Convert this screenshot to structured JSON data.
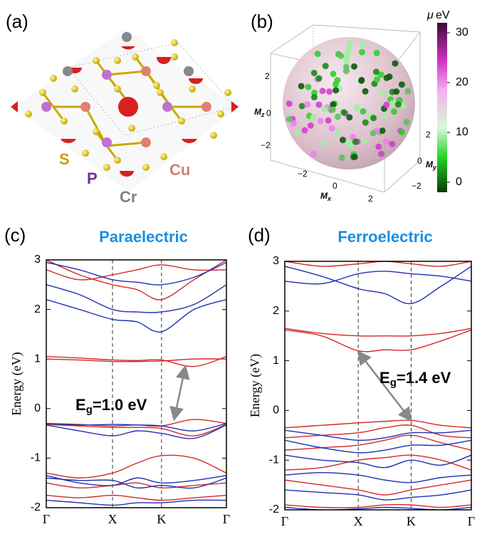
{
  "panel_labels": [
    "(a)",
    "(b)",
    "(c)",
    "(d)"
  ],
  "panel_a": {
    "elements": [
      "S",
      "P",
      "Cu",
      "Cr"
    ]
  },
  "panel_b": {
    "z_ticks": [
      "2",
      "0",
      "−2"
    ],
    "x_ticks": [
      "−2",
      "0",
      "2"
    ],
    "y_ticks": [
      "2",
      "0",
      "−2"
    ],
    "axis_labels": [
      {
        "main": "M",
        "sub": "z"
      },
      {
        "main": "M",
        "sub": "x"
      },
      {
        "main": "M",
        "sub": "y"
      }
    ],
    "colorbar": {
      "symbol": "μ",
      "unit": "eV",
      "lim": [
        -2,
        32
      ],
      "ticks": [
        0,
        10,
        20,
        30
      ]
    }
  },
  "chart_data": [
    {
      "type": "line",
      "title": "Paraelectric",
      "ylabel": "Energy (eV)",
      "xlim": [
        0,
        2.72
      ],
      "ylim": [
        -2,
        3
      ],
      "xticks": [
        {
          "value": 0,
          "label": "Γ"
        },
        {
          "value": 1,
          "label": "X"
        },
        {
          "value": 1.74,
          "label": "K"
        },
        {
          "value": 2.72,
          "label": "Γ"
        }
      ],
      "yticks": [
        -2,
        -1,
        0,
        1,
        2,
        3
      ],
      "kpoint_lines": true,
      "x": [
        0,
        0.5,
        1,
        1.37,
        1.74,
        2.23,
        2.72
      ],
      "series": [
        {
          "color": "#d62728",
          "values": [
            1.05,
            1.02,
            0.98,
            0.97,
            0.98,
            0.85,
            1.05
          ]
        },
        {
          "color": "#d62728",
          "values": [
            1.0,
            0.98,
            0.95,
            0.95,
            0.96,
            1.0,
            1.0
          ]
        },
        {
          "color": "#d62728",
          "values": [
            -0.3,
            -0.32,
            -0.35,
            -0.33,
            -0.35,
            -0.22,
            -0.3
          ]
        },
        {
          "color": "#d62728",
          "values": [
            -0.32,
            -0.35,
            -0.38,
            -0.38,
            -0.4,
            -0.55,
            -0.32
          ]
        },
        {
          "color": "#d62728",
          "values": [
            3,
            2.7,
            2.5,
            2.4,
            2.2,
            2.6,
            3
          ]
        },
        {
          "color": "#d62728",
          "values": [
            2.8,
            2.6,
            2.7,
            2.8,
            2.9,
            2.8,
            2.8
          ]
        },
        {
          "color": "#d62728",
          "values": [
            -1.3,
            -1.4,
            -1.3,
            -1.1,
            -0.95,
            -1.0,
            -1.3
          ]
        },
        {
          "color": "#d62728",
          "values": [
            -1.5,
            -1.6,
            -1.55,
            -1.5,
            -1.6,
            -1.55,
            -1.5
          ]
        },
        {
          "color": "#d62728",
          "values": [
            -1.75,
            -1.8,
            -1.75,
            -1.8,
            -1.85,
            -1.8,
            -1.75
          ]
        },
        {
          "color": "#1f2fb4",
          "values": [
            2.2,
            2.0,
            1.8,
            1.75,
            1.55,
            2.0,
            2.2
          ]
        },
        {
          "color": "#1f2fb4",
          "values": [
            2.5,
            2.3,
            2.0,
            1.95,
            1.95,
            2.1,
            2.5
          ]
        },
        {
          "color": "#1f2fb4",
          "values": [
            2.95,
            2.8,
            2.6,
            2.55,
            2.5,
            2.65,
            2.95
          ]
        },
        {
          "color": "#1f2fb4",
          "values": [
            -0.3,
            -0.33,
            -0.32,
            -0.33,
            -0.35,
            -0.45,
            -0.3
          ]
        },
        {
          "color": "#1f2fb4",
          "values": [
            -0.33,
            -0.45,
            -0.55,
            -0.45,
            -0.5,
            -0.6,
            -0.33
          ]
        },
        {
          "color": "#1f2fb4",
          "values": [
            -1.35,
            -1.5,
            -1.55,
            -1.4,
            -1.5,
            -1.45,
            -1.35
          ]
        },
        {
          "color": "#1f2fb4",
          "values": [
            -1.4,
            -1.45,
            -1.45,
            -1.6,
            -1.55,
            -1.6,
            -1.4
          ]
        },
        {
          "color": "#1f2fb4",
          "values": [
            -1.85,
            -1.9,
            -1.95,
            -1.9,
            -1.9,
            -1.85,
            -1.85
          ]
        }
      ],
      "annotation": {
        "main": "E",
        "sub": "g",
        "rest": "=1.0 eV",
        "arrow_from": [
          1.93,
          -0.22
        ],
        "arrow_to": [
          2.1,
          0.85
        ]
      }
    },
    {
      "type": "line",
      "title": "Ferroelectric",
      "ylabel": "Energy (eV)",
      "xlim": [
        0,
        2.54
      ],
      "ylim": [
        -2,
        3
      ],
      "xticks": [
        {
          "value": 0,
          "label": "Γ"
        },
        {
          "value": 1,
          "label": "X"
        },
        {
          "value": 1.72,
          "label": "K"
        },
        {
          "value": 2.54,
          "label": "Γ"
        }
      ],
      "yticks": [
        -2,
        -1,
        0,
        1,
        2,
        3
      ],
      "kpoint_lines": true,
      "x": [
        0,
        0.5,
        1,
        1.36,
        1.72,
        2.13,
        2.54
      ],
      "series": [
        {
          "color": "#d62728",
          "values": [
            1.62,
            1.5,
            1.2,
            1.22,
            1.22,
            1.4,
            1.62
          ]
        },
        {
          "color": "#d62728",
          "values": [
            1.65,
            1.55,
            1.5,
            1.5,
            1.5,
            1.55,
            1.65
          ]
        },
        {
          "color": "#d62728",
          "values": [
            3,
            2.9,
            2.95,
            3,
            2.95,
            2.9,
            3
          ]
        },
        {
          "color": "#d62728",
          "values": [
            -0.35,
            -0.3,
            -0.25,
            -0.22,
            -0.2,
            -0.3,
            -0.35
          ]
        },
        {
          "color": "#d62728",
          "values": [
            -0.55,
            -0.5,
            -0.45,
            -0.35,
            -0.3,
            -0.5,
            -0.55
          ]
        },
        {
          "color": "#d62728",
          "values": [
            -0.8,
            -0.75,
            -0.7,
            -0.6,
            -0.5,
            -0.65,
            -0.8
          ]
        },
        {
          "color": "#d62728",
          "values": [
            -1.2,
            -1.15,
            -1.0,
            -0.95,
            -0.9,
            -1.0,
            -1.2
          ]
        },
        {
          "color": "#d62728",
          "values": [
            -1.4,
            -1.5,
            -1.6,
            -1.7,
            -1.6,
            -1.5,
            -1.4
          ]
        },
        {
          "color": "#d62728",
          "values": [
            -1.9,
            -1.95,
            -1.95,
            -1.9,
            -1.9,
            -1.95,
            -1.9
          ]
        },
        {
          "color": "#1f2fb4",
          "values": [
            2.9,
            2.7,
            2.45,
            2.35,
            2.15,
            2.5,
            2.9
          ]
        },
        {
          "color": "#1f2fb4",
          "values": [
            2.6,
            2.55,
            2.75,
            2.8,
            2.75,
            2.7,
            2.6
          ]
        },
        {
          "color": "#1f2fb4",
          "values": [
            -0.4,
            -0.5,
            -0.6,
            -0.55,
            -0.45,
            -0.45,
            -0.4
          ]
        },
        {
          "color": "#1f2fb4",
          "values": [
            -0.6,
            -0.75,
            -0.85,
            -0.8,
            -0.7,
            -0.7,
            -0.6
          ]
        },
        {
          "color": "#1f2fb4",
          "values": [
            -0.9,
            -1.0,
            -1.05,
            -1.15,
            -1.0,
            -1.1,
            -0.9
          ]
        },
        {
          "color": "#1f2fb4",
          "values": [
            -1.3,
            -1.25,
            -1.3,
            -1.4,
            -1.45,
            -1.35,
            -1.3
          ]
        },
        {
          "color": "#1f2fb4",
          "values": [
            -1.6,
            -1.65,
            -1.7,
            -1.8,
            -1.75,
            -1.7,
            -1.6
          ]
        },
        {
          "color": "#1f2fb4",
          "values": [
            -1.95,
            -2.0,
            -1.98,
            -1.95,
            -1.97,
            -2.0,
            -1.95
          ]
        }
      ],
      "annotation": {
        "main": "E",
        "sub": "g",
        "rest": "=1.4 eV",
        "arrow_from": [
          1.72,
          -0.2
        ],
        "arrow_to": [
          1.0,
          1.18
        ]
      }
    }
  ]
}
